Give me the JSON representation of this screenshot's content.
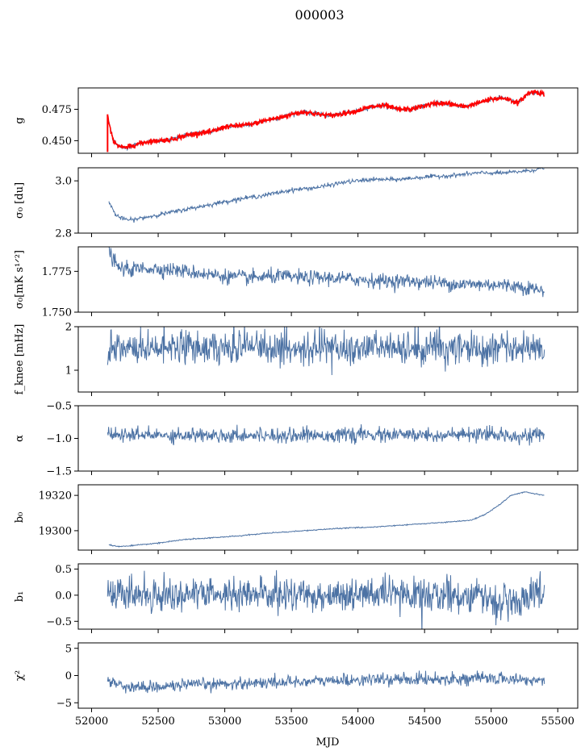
{
  "figure": {
    "title": "000003",
    "xlabel": "MJD"
  },
  "x_ticks": [
    "52000",
    "52500",
    "53000",
    "53500",
    "54000",
    "54500",
    "55000",
    "55500"
  ],
  "x_tick_values": [
    52000,
    52500,
    53000,
    53500,
    54000,
    54500,
    55000,
    55500
  ],
  "colors": {
    "series": "#4c72a4",
    "highlight": "#ff0000",
    "frame": "#000000"
  },
  "chart_data": [
    {
      "type": "line",
      "id": "g",
      "ylabel": "g",
      "xlim": [
        51900,
        55650
      ],
      "ylim": [
        0.44,
        0.492
      ],
      "yticks": [
        0.45,
        0.475
      ],
      "ytick_labels": [
        "0.450",
        "0.475"
      ],
      "noise": 0.0008,
      "series": [
        {
          "color": "#4c72a4",
          "x": [
            52120,
            52135,
            52160,
            52200,
            52250,
            52300,
            52400,
            52500,
            52600,
            52700,
            52800,
            52900,
            53000,
            53100,
            53200,
            53300,
            53400,
            53500,
            53600,
            53700,
            53800,
            53900,
            54000,
            54100,
            54200,
            54300,
            54400,
            54500,
            54600,
            54700,
            54800,
            54900,
            55000,
            55100,
            55200,
            55280,
            55330,
            55400
          ],
          "y": [
            0.47,
            0.462,
            0.452,
            0.446,
            0.444,
            0.446,
            0.449,
            0.45,
            0.451,
            0.454,
            0.456,
            0.457,
            0.461,
            0.462,
            0.463,
            0.466,
            0.468,
            0.471,
            0.473,
            0.471,
            0.47,
            0.472,
            0.474,
            0.477,
            0.478,
            0.475,
            0.475,
            0.478,
            0.48,
            0.479,
            0.477,
            0.48,
            0.483,
            0.484,
            0.48,
            0.487,
            0.488,
            0.487
          ]
        },
        {
          "color": "#ff0000",
          "x": [
            52120,
            52135,
            52160,
            52200,
            52250,
            52300,
            52400,
            52500,
            52600,
            52700,
            52800,
            52900,
            53000,
            53100,
            53200,
            53300,
            53400,
            53500,
            53600,
            53700,
            53800,
            53900,
            54000,
            54100,
            54200,
            54300,
            54400,
            54500,
            54600,
            54700,
            54800,
            54900,
            55000,
            55100,
            55200,
            55280,
            55330,
            55400
          ],
          "y": [
            0.47,
            0.461,
            0.451,
            0.446,
            0.444,
            0.446,
            0.449,
            0.45,
            0.451,
            0.454,
            0.456,
            0.457,
            0.461,
            0.462,
            0.463,
            0.466,
            0.468,
            0.471,
            0.473,
            0.471,
            0.47,
            0.472,
            0.474,
            0.477,
            0.478,
            0.475,
            0.475,
            0.478,
            0.48,
            0.479,
            0.477,
            0.48,
            0.483,
            0.484,
            0.48,
            0.488,
            0.489,
            0.487
          ]
        }
      ]
    },
    {
      "type": "line",
      "id": "sigma0",
      "ylabel": "σ₀ [du]",
      "xlim": [
        51900,
        55650
      ],
      "ylim": [
        2.8,
        3.05
      ],
      "yticks": [
        2.8,
        3.0
      ],
      "ytick_labels": [
        "2.8",
        "3.0"
      ],
      "noise": 0.004,
      "series": [
        {
          "color": "#4c72a4",
          "x": [
            52130,
            52180,
            52230,
            52300,
            52400,
            52500,
            52700,
            52900,
            53100,
            53300,
            53500,
            53700,
            53900,
            54100,
            54300,
            54500,
            54700,
            54900,
            55100,
            55300,
            55400
          ],
          "y": [
            2.92,
            2.87,
            2.855,
            2.85,
            2.86,
            2.87,
            2.89,
            2.91,
            2.93,
            2.945,
            2.965,
            2.975,
            2.995,
            3.005,
            3.005,
            3.015,
            3.02,
            3.03,
            3.03,
            3.04,
            3.05
          ]
        }
      ]
    },
    {
      "type": "line",
      "id": "sigma0_mk",
      "ylabel": "σ₀[mK s¹ᐟ²]",
      "xlim": [
        51900,
        55650
      ],
      "ylim": [
        1.75,
        1.79
      ],
      "yticks": [
        1.75,
        1.775
      ],
      "ytick_labels": [
        "1.750",
        "1.775"
      ],
      "noise": 0.0022,
      "series": [
        {
          "color": "#4c72a4",
          "x": [
            52120,
            52150,
            52200,
            52300,
            52400,
            52600,
            52800,
            53000,
            53200,
            53400,
            53600,
            53800,
            54000,
            54200,
            54400,
            54600,
            54800,
            55000,
            55200,
            55350,
            55400
          ],
          "y": [
            1.79,
            1.784,
            1.777,
            1.776,
            1.777,
            1.776,
            1.774,
            1.772,
            1.771,
            1.772,
            1.771,
            1.771,
            1.77,
            1.769,
            1.769,
            1.768,
            1.767,
            1.767,
            1.766,
            1.764,
            1.762
          ]
        }
      ]
    },
    {
      "type": "line",
      "id": "fknee",
      "ylabel": "f_knee [mHz]",
      "xlim": [
        51900,
        55650
      ],
      "ylim": [
        0.5,
        2.0
      ],
      "yticks": [
        1,
        2
      ],
      "ytick_labels": [
        "1",
        "2"
      ],
      "noise": 0.18,
      "series": [
        {
          "color": "#4c72a4",
          "x": [
            52120,
            55400
          ],
          "y": [
            1.5,
            1.5
          ]
        }
      ]
    },
    {
      "type": "line",
      "id": "alpha",
      "ylabel": "α",
      "xlim": [
        51900,
        55650
      ],
      "ylim": [
        -1.5,
        -0.5
      ],
      "yticks": [
        -1.5,
        -1.0,
        -0.5
      ],
      "ytick_labels": [
        "−1.5",
        "−1.0",
        "−0.5"
      ],
      "noise": 0.055,
      "series": [
        {
          "color": "#4c72a4",
          "x": [
            52120,
            55400
          ],
          "y": [
            -0.95,
            -0.95
          ]
        }
      ]
    },
    {
      "type": "line",
      "id": "b0",
      "ylabel": "b₀",
      "xlim": [
        51900,
        55650
      ],
      "ylim": [
        19289,
        19326
      ],
      "yticks": [
        19300,
        19320
      ],
      "ytick_labels": [
        "19300",
        "19320"
      ],
      "noise": 0.15,
      "series": [
        {
          "color": "#4c72a4",
          "x": [
            52130,
            52200,
            52300,
            52500,
            52700,
            52900,
            53100,
            53300,
            53500,
            53700,
            53900,
            54100,
            54300,
            54500,
            54700,
            54850,
            54950,
            55050,
            55150,
            55250,
            55330,
            55400
          ],
          "y": [
            19292,
            19291,
            19291.5,
            19293,
            19295,
            19296,
            19297,
            19298.5,
            19299.5,
            19300.5,
            19301.5,
            19302,
            19303,
            19304,
            19305,
            19306,
            19309,
            19314,
            19320,
            19322,
            19321,
            19320
          ]
        }
      ]
    },
    {
      "type": "line",
      "id": "b1",
      "ylabel": "b₁",
      "xlim": [
        51900,
        55650
      ],
      "ylim": [
        -0.65,
        0.6
      ],
      "yticks": [
        -0.5,
        0.0,
        0.5
      ],
      "ytick_labels": [
        "−0.5",
        "0.0",
        "0.5"
      ],
      "noise": 0.16,
      "series": [
        {
          "color": "#4c72a4",
          "x": [
            52120,
            54900,
            55150,
            55400
          ],
          "y": [
            0.02,
            0.0,
            -0.2,
            0.15
          ]
        }
      ]
    },
    {
      "type": "line",
      "id": "chi2",
      "ylabel": "χ²",
      "xlim": [
        51900,
        55650
      ],
      "ylim": [
        -6,
        6
      ],
      "yticks": [
        -5,
        0,
        5
      ],
      "ytick_labels": [
        "−5",
        "0",
        "5"
      ],
      "noise": 0.55,
      "series": [
        {
          "color": "#4c72a4",
          "x": [
            52120,
            52300,
            53000,
            54000,
            55000,
            55400
          ],
          "y": [
            -1.0,
            -2.2,
            -1.5,
            -0.8,
            -0.5,
            -1.0
          ]
        }
      ]
    }
  ]
}
